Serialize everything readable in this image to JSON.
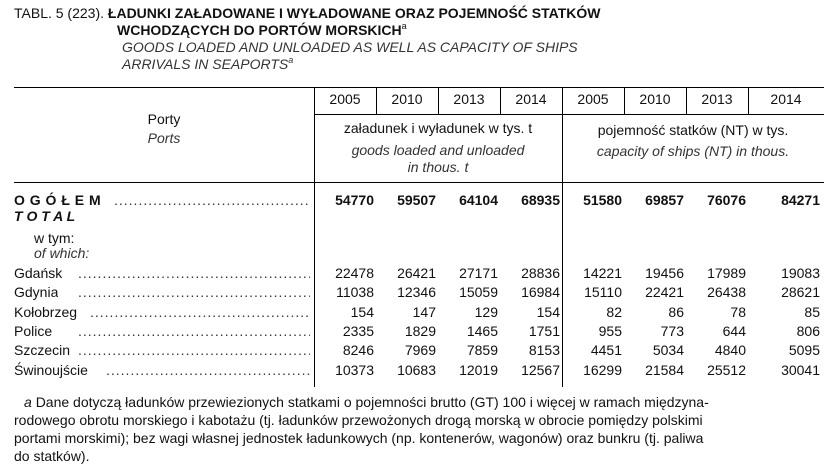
{
  "title": {
    "number": "TABL. 5 (223).",
    "pl_line1": "ŁADUNKI ZAŁADOWANE I WYŁADOWANE ORAZ POJEMNOŚĆ STATKÓW",
    "pl_line2": "WCHODZĄCYCH DO PORTÓW MORSKICH",
    "en_line1": "GOODS LOADED AND UNLOADED AS WELL AS CAPACITY OF SHIPS",
    "en_line2": "ARRIVALS IN SEAPORTS",
    "footnote_mark": "a"
  },
  "header": {
    "ports_pl": "Porty",
    "ports_en": "Ports",
    "years": [
      "2005",
      "2010",
      "2013",
      "2014",
      "2005",
      "2010",
      "2013",
      "2014"
    ],
    "group1_pl": "załadunek i wyładunek w tys. t",
    "group1_en_line1": "goods loaded and unloaded",
    "group1_en_line2": "in thous. t",
    "group2_pl": "pojemność statków (NT) w tys.",
    "group2_en": "capacity of ships (NT) in thous."
  },
  "total": {
    "label_pl": "O G Ó Ł E M",
    "label_en": "T O T A L",
    "values": [
      "54770",
      "59507",
      "64104",
      "68935",
      "51580",
      "69857",
      "76076",
      "84271"
    ]
  },
  "of_which": {
    "pl": "w tym:",
    "en": "of which:"
  },
  "rows": [
    {
      "name": "Gdańsk",
      "values": [
        "22478",
        "26421",
        "27171",
        "28836",
        "14221",
        "19456",
        "17989",
        "19083"
      ]
    },
    {
      "name": "Gdynia",
      "values": [
        "11038",
        "12346",
        "15059",
        "16984",
        "15110",
        "22421",
        "26438",
        "28621"
      ]
    },
    {
      "name": "Kołobrzeg",
      "values": [
        "154",
        "147",
        "129",
        "154",
        "82",
        "86",
        "78",
        "85"
      ]
    },
    {
      "name": "Police",
      "values": [
        "2335",
        "1829",
        "1465",
        "1751",
        "955",
        "773",
        "644",
        "806"
      ]
    },
    {
      "name": "Szczecin",
      "values": [
        "8246",
        "7969",
        "7859",
        "8153",
        "4451",
        "5034",
        "4840",
        "5095"
      ]
    },
    {
      "name": "Świnoujście",
      "values": [
        "10373",
        "10683",
        "12019",
        "12567",
        "16299",
        "21584",
        "25512",
        "30041"
      ]
    }
  ],
  "footnote": {
    "mark": "a",
    "line1": "Dane dotyczą ładunków przewiezionych statkami o pojemności brutto (GT) 100 i więcej w ramach międzyna-",
    "line2": "rodowego obrotu morskiego i kabotażu (tj. ładunków przewożonych drogą morską w obrocie pomiędzy polskimi",
    "line3": "portami morskimi); bez wagi własnej jednostek ładunkowych (np. kontenerów, wagonów) oraz bunkru (tj. paliwa",
    "line4": "do statków)."
  }
}
